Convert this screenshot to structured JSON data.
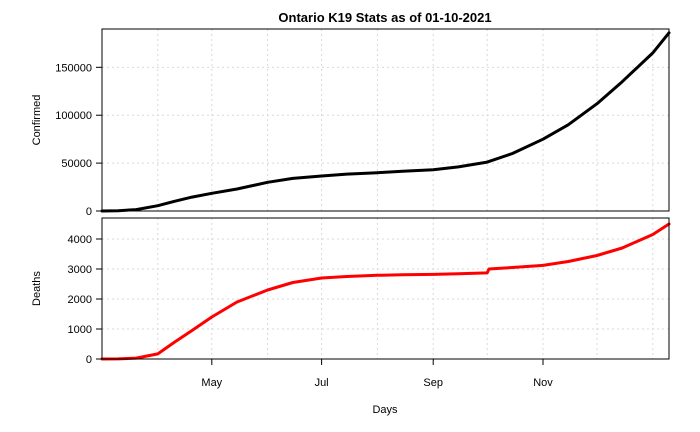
{
  "chart_data": {
    "type": "line",
    "title": "Ontario K19 Stats as of 01-10-2021",
    "xlabel": "Days",
    "x_tick_labels": [
      "May",
      "Jul",
      "Sep",
      "Nov"
    ],
    "x_tick_dates": [
      "2020-05-01",
      "2020-07-01",
      "2020-09-01",
      "2020-11-01"
    ],
    "xlim": [
      "2020-03-01",
      "2021-01-10"
    ],
    "grid": true,
    "panels": [
      {
        "ylabel": "Confirmed",
        "color": "#000000",
        "ylim": [
          0,
          190000
        ],
        "y_ticks": [
          0,
          50000,
          100000,
          150000
        ],
        "y_tick_labels": [
          "0",
          "50000",
          "100000",
          "150000"
        ],
        "x": [
          "2020-03-01",
          "2020-03-10",
          "2020-03-20",
          "2020-04-01",
          "2020-04-10",
          "2020-04-20",
          "2020-05-01",
          "2020-05-15",
          "2020-06-01",
          "2020-06-15",
          "2020-07-01",
          "2020-07-15",
          "2020-08-01",
          "2020-08-15",
          "2020-09-01",
          "2020-09-15",
          "2020-10-01",
          "2020-10-15",
          "2020-11-01",
          "2020-11-15",
          "2020-12-01",
          "2020-12-15",
          "2021-01-01",
          "2021-01-10"
        ],
        "values": [
          30,
          300,
          1500,
          5500,
          10000,
          14500,
          18500,
          23000,
          30000,
          34000,
          36500,
          38500,
          40000,
          41500,
          43000,
          46000,
          51000,
          60000,
          75000,
          90000,
          112000,
          135000,
          165000,
          186000
        ]
      },
      {
        "ylabel": "Deaths",
        "color": "#ff0000",
        "ylim": [
          0,
          4700
        ],
        "y_ticks": [
          0,
          1000,
          2000,
          3000,
          4000
        ],
        "y_tick_labels": [
          "0",
          "1000",
          "2000",
          "3000",
          "4000"
        ],
        "x": [
          "2020-03-01",
          "2020-03-10",
          "2020-03-20",
          "2020-04-01",
          "2020-04-10",
          "2020-04-20",
          "2020-05-01",
          "2020-05-15",
          "2020-06-01",
          "2020-06-15",
          "2020-07-01",
          "2020-07-15",
          "2020-08-01",
          "2020-08-15",
          "2020-09-01",
          "2020-09-15",
          "2020-10-01",
          "2020-10-02",
          "2020-10-15",
          "2020-11-01",
          "2020-11-15",
          "2020-12-01",
          "2020-12-15",
          "2021-01-01",
          "2021-01-10"
        ],
        "values": [
          0,
          5,
          30,
          170,
          550,
          950,
          1400,
          1900,
          2300,
          2550,
          2700,
          2750,
          2790,
          2810,
          2820,
          2840,
          2870,
          3000,
          3050,
          3120,
          3250,
          3450,
          3700,
          4150,
          4500
        ]
      }
    ]
  }
}
